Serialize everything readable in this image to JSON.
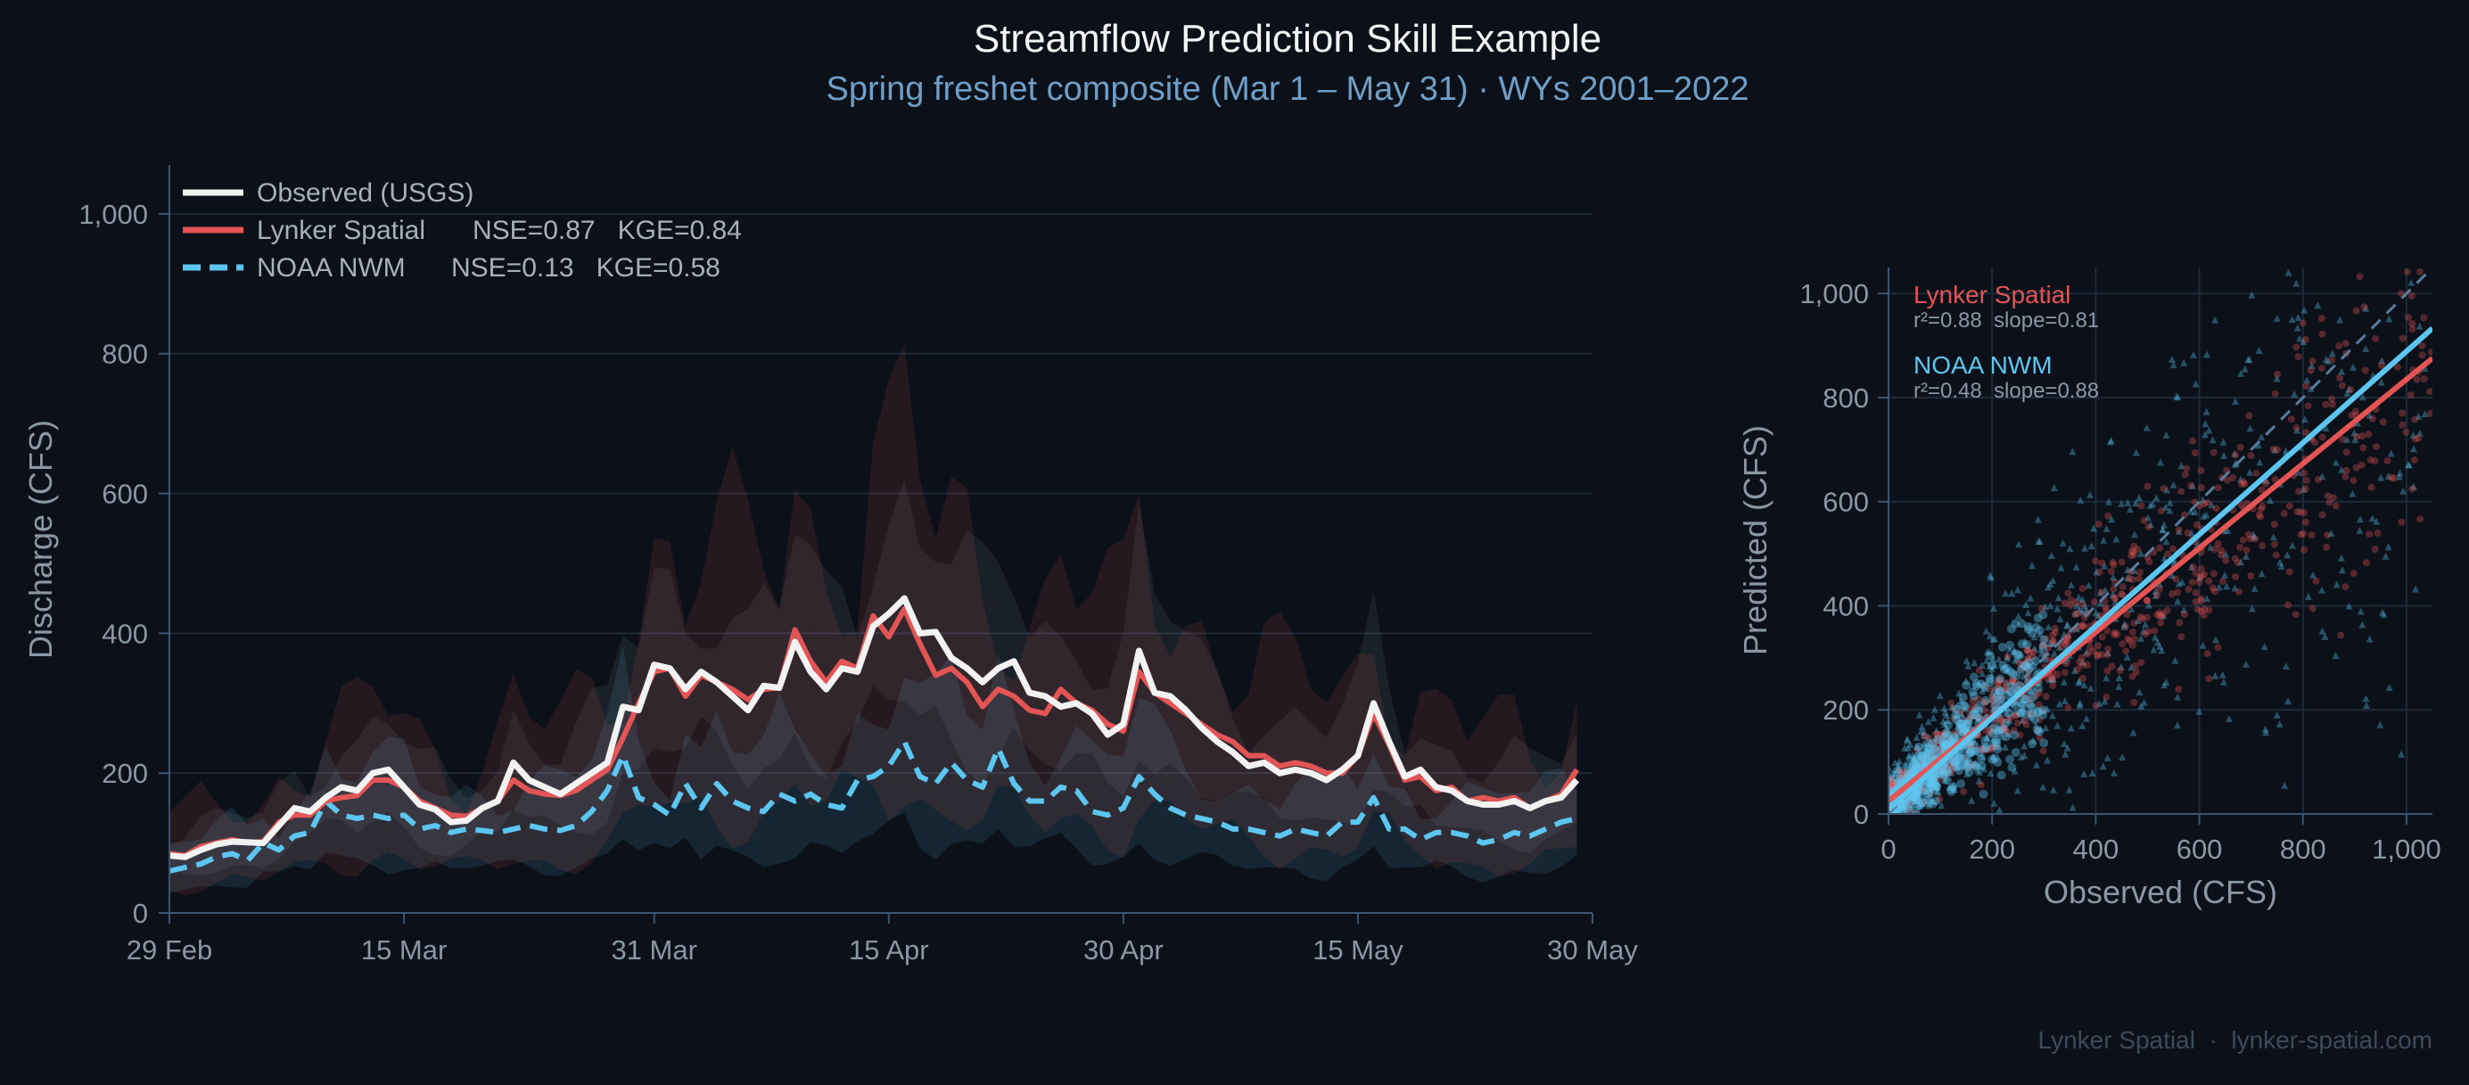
{
  "title": "Streamflow Prediction Skill Example",
  "subtitle": "Spring freshet composite (Mar 1 – May 31)  · WYs  2001–2022",
  "footer": "Lynker Spatial  ·  lynker-spatial.com",
  "colors": {
    "background": "#0c1119",
    "observed": "#f2f2f2",
    "lynker": "#e35454",
    "nwm": "#5cc6f0",
    "title": "#f4f4f4",
    "subtitle": "#6f9fc7",
    "axis": "#8a97a5"
  },
  "chart_data": [
    {
      "type": "line",
      "xlabel": "",
      "ylabel": "Discharge (CFS)",
      "ylim": [
        0,
        1070
      ],
      "yticks": [
        0,
        200,
        400,
        600,
        800,
        1000
      ],
      "ytick_labels": [
        "0",
        "200",
        "400",
        "600",
        "800",
        "1,000"
      ],
      "xlim": [
        0,
        91
      ],
      "xticks": [
        0,
        15,
        31,
        46,
        61,
        76,
        91
      ],
      "xtick_labels": [
        "29 Feb",
        "15 Mar",
        "31 Mar",
        "15 Apr",
        "30 Apr",
        "15 May",
        "30 May"
      ],
      "grid": "horizontal",
      "legend_position": "top-left",
      "legend": [
        {
          "label": "Observed (USGS)",
          "metrics": ""
        },
        {
          "label": "Lynker Spatial",
          "metrics": "NSE=0.87   KGE=0.84"
        },
        {
          "label": "NOAA NWM",
          "metrics": "NSE=0.13   KGE=0.58"
        }
      ],
      "series": [
        {
          "name": "Observed (USGS)",
          "values": [
            82,
            80,
            90,
            98,
            102,
            101,
            100,
            125,
            150,
            145,
            165,
            180,
            175,
            200,
            205,
            180,
            155,
            148,
            130,
            132,
            150,
            160,
            215,
            190,
            180,
            170,
            185,
            200,
            215,
            295,
            290,
            355,
            350,
            320,
            345,
            330,
            310,
            290,
            325,
            322,
            388,
            345,
            320,
            350,
            345,
            410,
            428,
            450,
            400,
            402,
            365,
            350,
            330,
            350,
            360,
            315,
            310,
            295,
            300,
            285,
            255,
            270,
            375,
            315,
            310,
            290,
            265,
            245,
            230,
            210,
            215,
            200,
            205,
            200,
            190,
            205,
            225,
            300,
            245,
            195,
            205,
            180,
            175,
            160,
            155,
            155,
            160,
            150,
            160,
            165,
            190
          ]
        },
        {
          "name": "Lynker Spatial",
          "values": [
            85,
            82,
            95,
            100,
            105,
            100,
            102,
            130,
            140,
            140,
            160,
            165,
            168,
            190,
            190,
            180,
            160,
            150,
            140,
            138,
            150,
            160,
            190,
            175,
            170,
            168,
            175,
            190,
            205,
            250,
            300,
            345,
            350,
            310,
            340,
            330,
            320,
            305,
            320,
            322,
            405,
            360,
            330,
            360,
            350,
            425,
            395,
            435,
            385,
            340,
            350,
            330,
            295,
            320,
            310,
            290,
            285,
            320,
            300,
            290,
            270,
            260,
            345,
            315,
            300,
            285,
            270,
            255,
            245,
            225,
            225,
            210,
            215,
            210,
            200,
            200,
            225,
            285,
            240,
            190,
            195,
            175,
            180,
            160,
            165,
            160,
            165,
            150,
            160,
            170,
            205
          ]
        },
        {
          "name": "NOAA NWM",
          "values": [
            60,
            65,
            70,
            80,
            85,
            75,
            100,
            90,
            110,
            115,
            160,
            140,
            135,
            140,
            135,
            140,
            120,
            125,
            115,
            120,
            118,
            115,
            120,
            125,
            120,
            118,
            125,
            145,
            175,
            225,
            165,
            155,
            140,
            185,
            150,
            185,
            160,
            150,
            145,
            170,
            160,
            170,
            155,
            150,
            190,
            195,
            210,
            245,
            195,
            185,
            215,
            190,
            180,
            235,
            185,
            160,
            160,
            180,
            175,
            145,
            140,
            150,
            195,
            170,
            150,
            140,
            135,
            130,
            120,
            120,
            115,
            110,
            120,
            115,
            110,
            130,
            130,
            165,
            120,
            120,
            105,
            115,
            115,
            110,
            100,
            105,
            115,
            110,
            120,
            130,
            135
          ]
        }
      ],
      "bands": [
        {
          "name": "Lynker Spatial",
          "lower_pct": 0.45,
          "upper_pct": 1.55
        },
        {
          "name": "NOAA NWM",
          "lower_pct": 0.55,
          "upper_pct": 1.5
        }
      ]
    },
    {
      "type": "scatter",
      "xlabel": "Observed (CFS)",
      "ylabel": "Predicted (CFS)",
      "xlim": [
        0,
        1050
      ],
      "ylim": [
        0,
        1050
      ],
      "xticks": [
        0,
        200,
        400,
        600,
        800,
        1000
      ],
      "xtick_labels": [
        "0",
        "200",
        "400",
        "600",
        "800",
        "1,000"
      ],
      "yticks": [
        0,
        200,
        400,
        600,
        800,
        1000
      ],
      "ytick_labels": [
        "0",
        "200",
        "400",
        "600",
        "800",
        "1,000"
      ],
      "grid": "both",
      "one_to_one_line": true,
      "annotations": [
        {
          "label": "Lynker Spatial",
          "stats": "r²=0.88  slope=0.81"
        },
        {
          "label": "NOAA NWM",
          "stats": "r²=0.48  slope=0.88"
        }
      ],
      "series": [
        {
          "name": "Lynker Spatial",
          "marker": "circle",
          "fit": {
            "slope": 0.81,
            "intercept": 25
          },
          "r2": 0.88
        },
        {
          "name": "NOAA NWM",
          "marker": "triangle",
          "fit": {
            "slope": 0.88,
            "intercept": 30
          },
          "r2": 0.48
        }
      ]
    }
  ]
}
